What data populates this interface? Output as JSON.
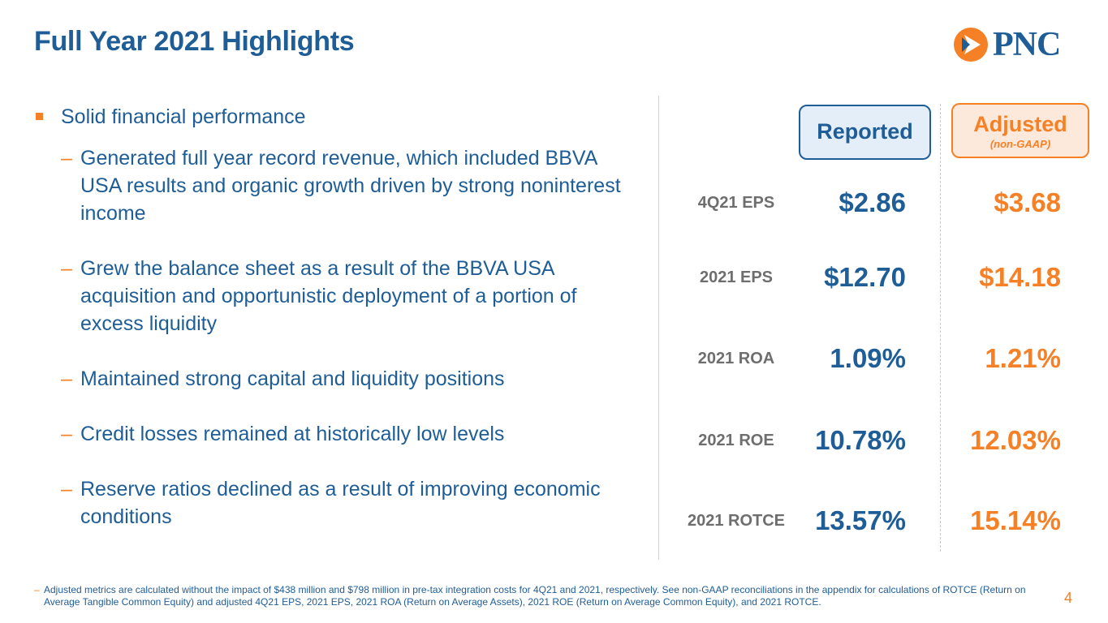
{
  "title": "Full Year 2021 Highlights",
  "logo": {
    "text": "PNC",
    "icon": "pnc-logo-icon",
    "brand_orange": "#f58025",
    "brand_blue": "#1f5d96"
  },
  "bullets": {
    "main": "Solid financial performance",
    "subs": [
      "Generated full year record revenue, which included BBVA USA results and organic growth driven by strong noninterest income",
      "Grew the balance sheet as a result of the BBVA USA acquisition and opportunistic deployment of a portion of excess liquidity",
      "Maintained strong capital and liquidity positions",
      "Credit losses remained at historically low levels",
      "Reserve ratios declined as a result of improving economic conditions"
    ]
  },
  "columns": {
    "reported": "Reported",
    "adjusted": "Adjusted",
    "adjusted_sub": "(non-GAAP)"
  },
  "metrics": [
    {
      "label": "4Q21 EPS",
      "reported": "$2.86",
      "adjusted": "$3.68"
    },
    {
      "label": "2021 EPS",
      "reported": "$12.70",
      "adjusted": "$14.18"
    },
    {
      "label": "2021 ROA",
      "reported": "1.09%",
      "adjusted": "1.21%"
    },
    {
      "label": "2021 ROE",
      "reported": "10.78%",
      "adjusted": "12.03%"
    },
    {
      "label": "2021 ROTCE",
      "reported": "13.57%",
      "adjusted": "15.14%"
    }
  ],
  "footnote": "Adjusted metrics are calculated without the impact of $438 million and $798 million in pre-tax integration costs for 4Q21 and 2021, respectively. See non-GAAP reconciliations in the appendix for calculations of ROTCE (Return on Average Tangible Common Equity) and adjusted 4Q21 EPS, 2021 EPS, 2021 ROA (Return on Average Assets), 2021 ROE (Return on Average Common Equity), and 2021 ROTCE.",
  "page_number": "4"
}
